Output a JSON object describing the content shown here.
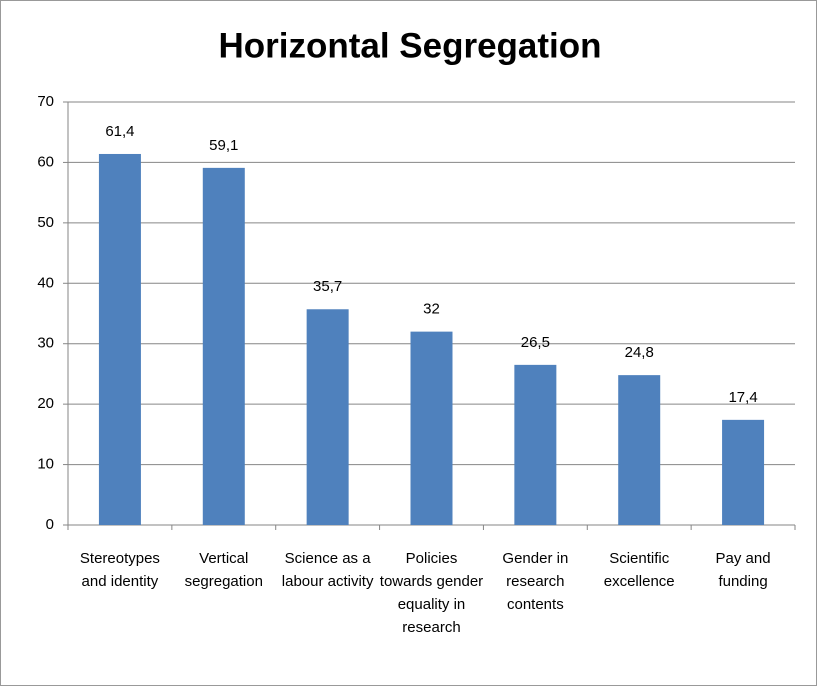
{
  "chart_data": {
    "type": "bar",
    "title": "Horizontal Segregation",
    "categories": [
      "Stereotypes and identity",
      "Vertical segregation",
      "Science as a labour activity",
      "Policies towards gender equality in research",
      "Gender in research contents",
      "Scientific excellence",
      "Pay and funding"
    ],
    "values": [
      61.4,
      59.1,
      35.7,
      32,
      26.5,
      24.8,
      17.4
    ],
    "value_labels": [
      "61,4",
      "59,1",
      "35,7",
      "32",
      "26,5",
      "24,8",
      "17,4"
    ],
    "color": "#4f81bd",
    "ylim": [
      0,
      70
    ],
    "yticks": [
      0,
      10,
      20,
      30,
      40,
      50,
      60,
      70
    ],
    "grid": true
  }
}
